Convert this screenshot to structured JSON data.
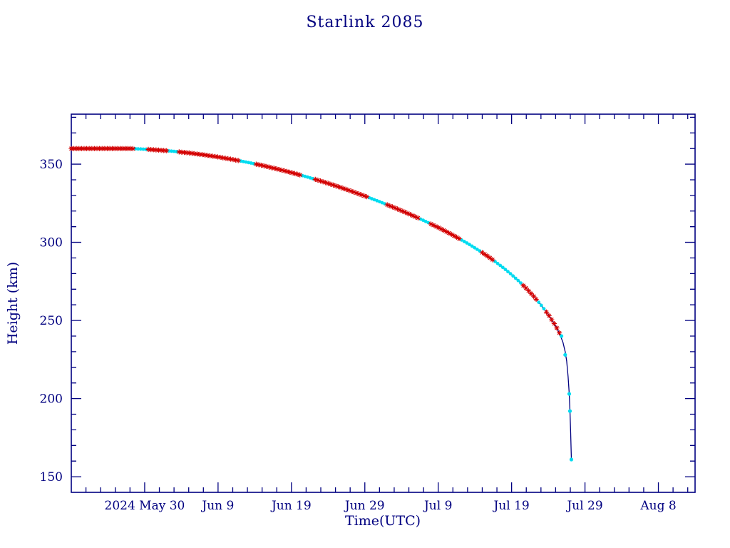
{
  "chart_data": {
    "type": "line",
    "title": "Starlink 2085",
    "xlabel": "Time(UTC)",
    "ylabel": "Height (km)",
    "x_unit": "days since 2024 May 20 (derived from axis tick labels)",
    "xlim": [
      0,
      85
    ],
    "ylim": [
      140,
      382
    ],
    "x_ticks": [
      {
        "day": 10,
        "label": "2024 May 30"
      },
      {
        "day": 20,
        "label": "Jun 9"
      },
      {
        "day": 30,
        "label": "Jun 19"
      },
      {
        "day": 40,
        "label": "Jun 29"
      },
      {
        "day": 50,
        "label": "Jul 9"
      },
      {
        "day": 60,
        "label": "Jul 19"
      },
      {
        "day": 70,
        "label": "Jul 29"
      },
      {
        "day": 80,
        "label": "Aug 8"
      }
    ],
    "x_minor_step": 2,
    "y_ticks": [
      150,
      200,
      250,
      300,
      350
    ],
    "y_minor_step": 10,
    "grid": false,
    "legend": "none",
    "series": [
      {
        "name": "height",
        "points": [
          [
            0,
            360
          ],
          [
            2,
            360
          ],
          [
            4,
            360
          ],
          [
            6,
            360
          ],
          [
            8,
            360
          ],
          [
            10,
            359.6
          ],
          [
            12,
            359
          ],
          [
            14,
            358.2
          ],
          [
            16,
            357.2
          ],
          [
            18,
            356
          ],
          [
            20,
            354.6
          ],
          [
            22,
            353
          ],
          [
            24,
            351.2
          ],
          [
            26,
            349.2
          ],
          [
            28,
            347
          ],
          [
            30,
            344.6
          ],
          [
            32,
            342
          ],
          [
            34,
            339.2
          ],
          [
            36,
            336.2
          ],
          [
            38,
            333
          ],
          [
            40,
            329.6
          ],
          [
            42,
            326
          ],
          [
            44,
            322.2
          ],
          [
            46,
            318.2
          ],
          [
            48,
            314
          ],
          [
            50,
            309.5
          ],
          [
            51,
            307.1
          ],
          [
            52,
            304.6
          ],
          [
            53,
            302
          ],
          [
            54,
            299.3
          ],
          [
            55,
            296.4
          ],
          [
            56,
            293.4
          ],
          [
            57,
            290.2
          ],
          [
            58,
            286.8
          ],
          [
            59,
            283.2
          ],
          [
            60,
            279.3
          ],
          [
            61,
            275.1
          ],
          [
            62,
            270.5
          ],
          [
            63,
            265.5
          ],
          [
            64,
            260
          ],
          [
            65,
            253.8
          ],
          [
            66,
            246.5
          ],
          [
            66.5,
            242
          ],
          [
            67,
            236
          ],
          [
            67.3,
            230
          ],
          [
            67.5,
            224
          ],
          [
            67.7,
            214
          ],
          [
            67.85,
            203
          ],
          [
            67.95,
            192
          ],
          [
            68.05,
            178
          ],
          [
            68.15,
            161
          ]
        ]
      }
    ],
    "marker_step_days": 0.35,
    "red_marker_end_day": 66.6,
    "cyan_ranges": [
      [
        8.5,
        10.2
      ],
      [
        13,
        14.6
      ],
      [
        23,
        25
      ],
      [
        31.5,
        33
      ],
      [
        40.5,
        43
      ],
      [
        47.5,
        49
      ],
      [
        53,
        55.8
      ],
      [
        57.5,
        61.3
      ],
      [
        63.5,
        64.5
      ]
    ],
    "end_markers": [
      [
        66.8,
        240
      ],
      [
        67.3,
        228
      ],
      [
        67.85,
        203
      ],
      [
        67.95,
        192
      ],
      [
        68.15,
        161
      ]
    ],
    "colors": {
      "line": "#000080",
      "axis": "#000080",
      "text": "#000080",
      "marker_primary": "#d40000",
      "marker_secondary": "#00dcf0",
      "background": "#ffffff"
    }
  }
}
